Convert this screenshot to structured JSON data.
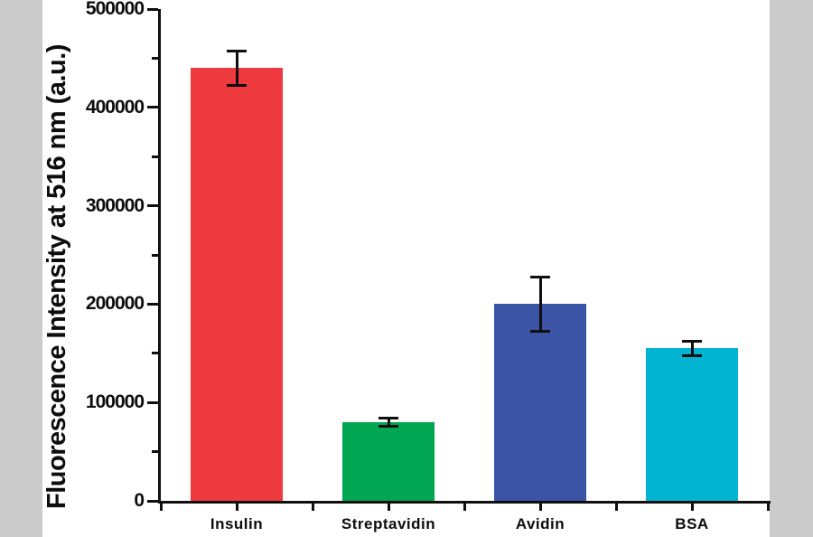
{
  "page": {
    "border_color": "#cbcbcb",
    "canvas_color": "#ffffff"
  },
  "chart_data": {
    "type": "bar",
    "title": "",
    "xlabel": "",
    "ylabel": "Fluorescence Intensity at 516 nm (a.u.)",
    "categories": [
      "Insulin",
      "Streptavidin",
      "Avidin",
      "BSA"
    ],
    "values": [
      440000,
      80000,
      200000,
      155000
    ],
    "errors": [
      18000,
      5000,
      28000,
      8000
    ],
    "bar_colors": [
      "#ee3a3e",
      "#00a651",
      "#3b54a5",
      "#00b4d2"
    ],
    "ylim": [
      0,
      500000
    ],
    "y_major_tick_step": 100000,
    "y_minor_tick_step": 50000,
    "y_tick_labels": [
      "0",
      "100000",
      "200000",
      "300000",
      "400000",
      "500000"
    ],
    "grid": false,
    "legend": "none",
    "axis_color": "#0f0f0f",
    "error_bar_color": "#0f0f0f"
  }
}
